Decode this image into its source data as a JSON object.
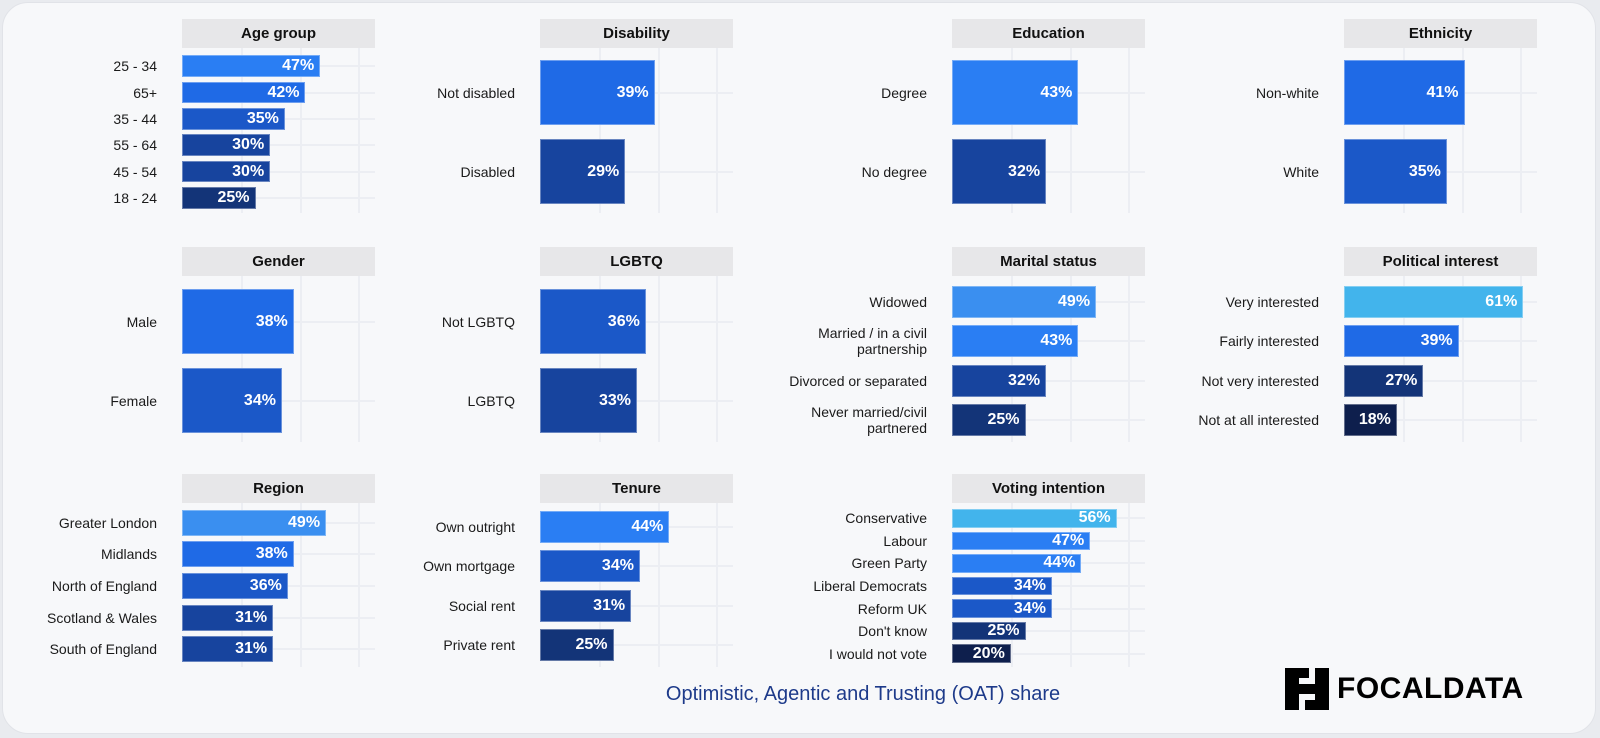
{
  "chart_data": {
    "type": "bar",
    "orientation": "horizontal",
    "title": "Optimistic, Agentic and Trusting (OAT) share",
    "unit": "%",
    "xlim": [
      0,
      65
    ],
    "grid": true,
    "panels": [
      {
        "title": "Age group",
        "categories": [
          "25 - 34",
          "65+",
          "35 - 44",
          "55 - 64",
          "45 - 54",
          "18 - 24"
        ],
        "values": [
          47,
          42,
          35,
          30,
          30,
          25
        ]
      },
      {
        "title": "Disability",
        "categories": [
          "Not disabled",
          "Disabled"
        ],
        "values": [
          39,
          29
        ]
      },
      {
        "title": "Education",
        "categories": [
          "Degree",
          "No degree"
        ],
        "values": [
          43,
          32
        ]
      },
      {
        "title": "Ethnicity",
        "categories": [
          "Non-white",
          "White"
        ],
        "values": [
          41,
          35
        ]
      },
      {
        "title": "Gender",
        "categories": [
          "Male",
          "Female"
        ],
        "values": [
          38,
          34
        ]
      },
      {
        "title": "LGBTQ",
        "categories": [
          "Not LGBTQ",
          "LGBTQ"
        ],
        "values": [
          36,
          33
        ]
      },
      {
        "title": "Marital status",
        "categories": [
          "Widowed",
          "Married / in a civil partnership",
          "Divorced or separated",
          "Never married/civil partnered"
        ],
        "values": [
          49,
          43,
          32,
          25
        ]
      },
      {
        "title": "Political interest",
        "categories": [
          "Very interested",
          "Fairly interested",
          "Not very interested",
          "Not at all interested"
        ],
        "values": [
          61,
          39,
          27,
          18
        ]
      },
      {
        "title": "Region",
        "categories": [
          "Greater London",
          "Midlands",
          "North of England",
          "Scotland & Wales",
          "South of England"
        ],
        "values": [
          49,
          38,
          36,
          31,
          31
        ]
      },
      {
        "title": "Tenure",
        "categories": [
          "Own outright",
          "Own mortgage",
          "Social rent",
          "Private rent"
        ],
        "values": [
          44,
          34,
          31,
          25
        ]
      },
      {
        "title": "Voting intention",
        "categories": [
          "Conservative",
          "Labour",
          "Green Party",
          "Liberal Democrats",
          "Reform UK",
          "Don't know",
          "I would not vote"
        ],
        "values": [
          56,
          47,
          44,
          34,
          34,
          25,
          20
        ]
      }
    ],
    "color_scale": [
      "#0e1f4d",
      "#133478",
      "#17449e",
      "#1b58c8",
      "#1f6ae6",
      "#2a7ef3",
      "#3a8ff0",
      "#42b4ec"
    ]
  },
  "logo": {
    "text": "FOCALDATA"
  }
}
